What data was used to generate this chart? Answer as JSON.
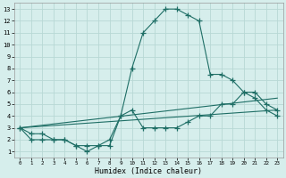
{
  "xlabel": "Humidex (Indice chaleur)",
  "bg_color": "#d6eeec",
  "line_color": "#1e6e65",
  "grid_color": "#b8d8d5",
  "xlim": [
    -0.5,
    23.5
  ],
  "ylim": [
    0.5,
    13.5
  ],
  "xticks": [
    0,
    1,
    2,
    3,
    4,
    5,
    6,
    7,
    8,
    9,
    10,
    11,
    12,
    13,
    14,
    15,
    16,
    17,
    18,
    19,
    20,
    21,
    22,
    23
  ],
  "yticks": [
    1,
    2,
    3,
    4,
    5,
    6,
    7,
    8,
    9,
    10,
    11,
    12,
    13
  ],
  "line1_x": [
    0,
    1,
    2,
    3,
    4,
    5,
    6,
    7,
    8,
    9,
    10,
    11,
    12,
    13,
    14,
    15,
    16,
    17,
    18,
    19,
    20,
    21,
    22,
    23
  ],
  "line1_y": [
    3,
    2,
    2,
    2,
    2,
    1.5,
    1,
    1.5,
    2,
    4,
    8,
    11,
    12,
    13,
    13,
    12.5,
    12,
    7.5,
    7.5,
    7,
    6,
    5.5,
    4.5,
    4
  ],
  "line2_x": [
    0,
    1,
    2,
    3,
    4,
    5,
    6,
    7,
    8,
    9,
    10,
    11,
    12,
    13,
    14,
    15,
    16,
    17,
    18,
    19,
    20,
    21,
    22,
    23
  ],
  "line2_y": [
    3,
    2.5,
    2.5,
    2,
    2,
    1.5,
    1.5,
    1.5,
    1.5,
    4,
    4.5,
    3,
    3,
    3,
    3,
    3.5,
    4,
    4,
    5,
    5,
    6,
    6,
    5,
    4.5
  ],
  "line3_x": [
    0,
    23
  ],
  "line3_y": [
    3,
    5.5
  ],
  "line4_x": [
    0,
    23
  ],
  "line4_y": [
    3,
    4.5
  ]
}
